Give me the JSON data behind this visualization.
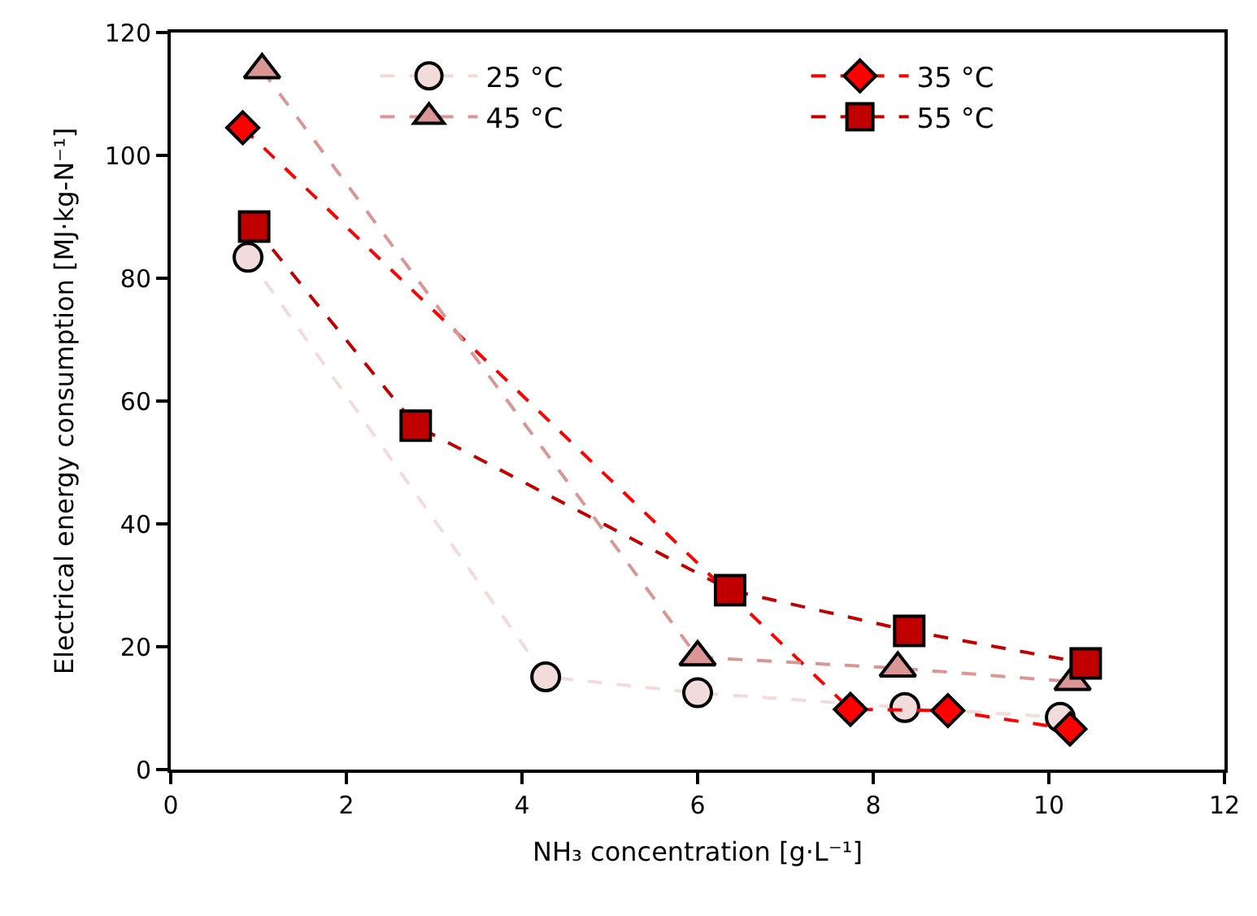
{
  "chart_data": {
    "type": "line",
    "xlabel": "NH₃ concentration [g·L⁻¹]",
    "ylabel": "Electrical energy consumption [MJ·kg-N⁻¹]",
    "xlim": [
      0,
      12
    ],
    "xticks": [
      0,
      2,
      4,
      6,
      8,
      10,
      12
    ],
    "ylim": [
      0,
      120
    ],
    "yticks": [
      0,
      20,
      40,
      60,
      80,
      100,
      120
    ],
    "legend": "top",
    "line_style": "dashed",
    "series": [
      {
        "name": "25 °C",
        "color": "#f2dcdb",
        "marker": "circle",
        "x": [
          0.88,
          4.27,
          6.0,
          8.36,
          10.13
        ],
        "values": [
          83.4,
          15.1,
          12.5,
          10.1,
          8.5
        ]
      },
      {
        "name": "35 °C",
        "color": "#ff0000",
        "marker": "diamond",
        "x": [
          0.82,
          7.74,
          8.85,
          10.24
        ],
        "values": [
          104.5,
          9.8,
          9.6,
          6.6
        ]
      },
      {
        "name": "45 °C",
        "color": "#d99694",
        "marker": "triangle",
        "x": [
          1.04,
          6.0,
          8.28,
          10.27
        ],
        "values": [
          113.9,
          18.3,
          16.5,
          14.3
        ]
      },
      {
        "name": "55 °C",
        "color": "#c00000",
        "marker": "square",
        "x": [
          0.95,
          2.79,
          6.37,
          8.41,
          10.42
        ],
        "values": [
          88.4,
          56.0,
          29.2,
          22.6,
          17.3
        ]
      }
    ]
  }
}
